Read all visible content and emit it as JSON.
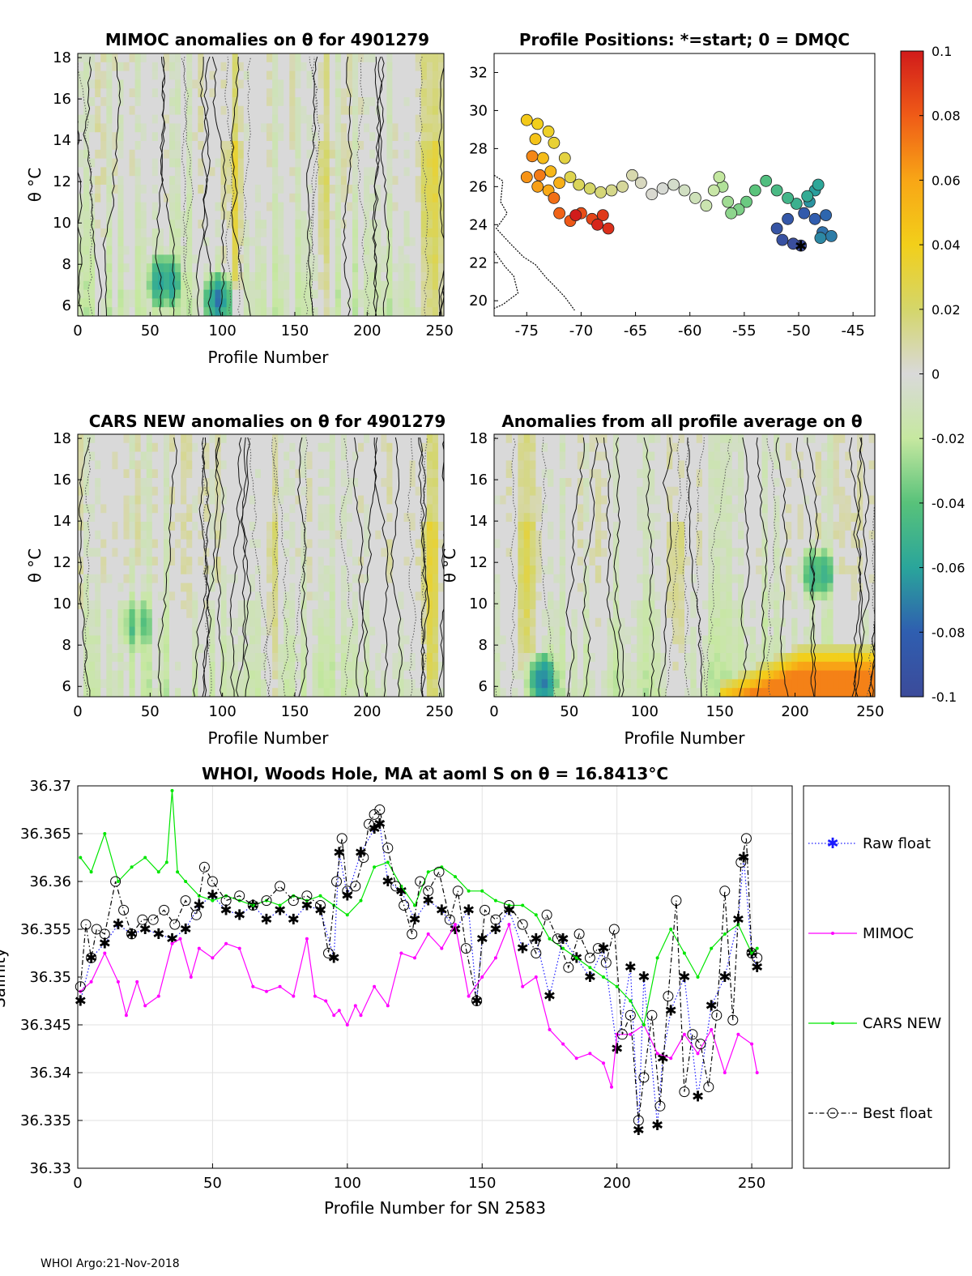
{
  "chart_data": [
    {
      "id": "mimoc",
      "type": "heatmap",
      "title": "MIMOC anomalies on θ  for 4901279",
      "xlabel": "Profile Number",
      "ylabel": "θ °C",
      "xlim": [
        0,
        253
      ],
      "ylim": [
        5.5,
        18.2
      ],
      "xticks": [
        0,
        50,
        100,
        150,
        200,
        250
      ],
      "yticks": [
        6,
        8,
        10,
        12,
        14,
        16,
        18
      ],
      "warm_bands": [
        {
          "x": 245,
          "value": 0.03
        },
        {
          "x": 108,
          "value": 0.03
        },
        {
          "x": 168,
          "value": 0.02
        }
      ],
      "cold_patches": [
        {
          "x": 60,
          "y": 7.2,
          "value": -0.05
        },
        {
          "x": 98,
          "y": 6.3,
          "value": -0.06
        }
      ]
    },
    {
      "id": "positions",
      "type": "scatter",
      "title": "Profile Positions: *=start; 0 = DMQC",
      "xlabel": "",
      "ylabel": "",
      "xlim": [
        -78,
        -43
      ],
      "ylim": [
        19.2,
        33
      ],
      "xticks": [
        -75,
        -70,
        -65,
        -60,
        -55,
        -50,
        -45
      ],
      "yticks": [
        20,
        22,
        24,
        26,
        28,
        30,
        32
      ],
      "start_marker": {
        "lon": -49.8,
        "lat": 22.9
      },
      "track": [
        [
          -49.8,
          22.9
        ],
        [
          -50.5,
          23.0
        ],
        [
          -51.5,
          23.2
        ],
        [
          -52.0,
          23.8
        ],
        [
          -51.0,
          24.3
        ],
        [
          -49.5,
          24.6
        ],
        [
          -48.5,
          24.3
        ],
        [
          -47.5,
          24.5
        ],
        [
          -47.8,
          23.6
        ],
        [
          -47.0,
          23.4
        ],
        [
          -48.0,
          23.3
        ],
        [
          -49.0,
          25.2
        ],
        [
          -48.5,
          25.8
        ],
        [
          -48.2,
          26.1
        ],
        [
          -49.2,
          25.5
        ],
        [
          -50.2,
          25.1
        ],
        [
          -51.0,
          25.4
        ],
        [
          -52.0,
          25.8
        ],
        [
          -53.0,
          26.3
        ],
        [
          -54.0,
          25.8
        ],
        [
          -54.8,
          25.2
        ],
        [
          -55.5,
          24.8
        ],
        [
          -56.2,
          24.6
        ],
        [
          -56.5,
          25.2
        ],
        [
          -57.0,
          26.0
        ],
        [
          -57.3,
          26.5
        ],
        [
          -57.8,
          25.8
        ],
        [
          -58.5,
          25.0
        ],
        [
          -59.5,
          25.4
        ],
        [
          -60.5,
          25.8
        ],
        [
          -61.5,
          26.1
        ],
        [
          -62.5,
          25.9
        ],
        [
          -63.5,
          25.6
        ],
        [
          -64.5,
          26.2
        ],
        [
          -65.3,
          26.6
        ],
        [
          -66.2,
          26.0
        ],
        [
          -67.2,
          25.8
        ],
        [
          -68.2,
          25.7
        ],
        [
          -69.2,
          25.9
        ],
        [
          -70.2,
          26.1
        ],
        [
          -71.0,
          26.5
        ],
        [
          -71.5,
          27.5
        ],
        [
          -72.5,
          28.3
        ],
        [
          -73.0,
          28.9
        ],
        [
          -74.0,
          29.3
        ],
        [
          -75.0,
          29.5
        ],
        [
          -74.2,
          28.5
        ],
        [
          -73.5,
          27.5
        ],
        [
          -72.8,
          26.8
        ],
        [
          -72.0,
          26.2
        ],
        [
          -73.0,
          25.8
        ],
        [
          -74.0,
          26.0
        ],
        [
          -75.0,
          26.5
        ],
        [
          -74.5,
          27.6
        ],
        [
          -73.8,
          26.6
        ],
        [
          -72.5,
          25.4
        ],
        [
          -72.0,
          24.6
        ],
        [
          -71.0,
          24.2
        ],
        [
          -70.0,
          24.6
        ],
        [
          -69.0,
          24.3
        ],
        [
          -68.0,
          24.5
        ],
        [
          -67.5,
          23.8
        ],
        [
          -68.5,
          24.0
        ],
        [
          -70.5,
          24.5
        ]
      ]
    },
    {
      "id": "cars",
      "type": "heatmap",
      "title": "CARS NEW anomalies on θ for 4901279",
      "xlabel": "Profile Number",
      "ylabel": "θ °C",
      "xlim": [
        0,
        253
      ],
      "ylim": [
        5.5,
        18.2
      ],
      "xticks": [
        0,
        50,
        100,
        150,
        200,
        250
      ],
      "yticks": [
        6,
        8,
        10,
        12,
        14,
        16,
        18
      ],
      "warm_bands": [
        {
          "x": 243,
          "value": 0.035
        },
        {
          "x": 135,
          "value": 0.02
        }
      ],
      "cold_patches": [
        {
          "x": 40,
          "y": 9.0,
          "value": -0.03
        }
      ]
    },
    {
      "id": "allavg",
      "type": "heatmap",
      "title": "Anomalies from all profile average on θ",
      "xlabel": "Profile Number",
      "ylabel": "θ °C",
      "xlim": [
        0,
        253
      ],
      "ylim": [
        5.5,
        18.2
      ],
      "xticks": [
        0,
        50,
        100,
        150,
        200,
        250
      ],
      "yticks": [
        6,
        8,
        10,
        12,
        14,
        16,
        18
      ],
      "warm_bands": [
        {
          "x": 22,
          "value": 0.025
        },
        {
          "x": 122,
          "value": 0.025
        }
      ],
      "cold_patches": [
        {
          "x": 30,
          "y": 6.3,
          "value": -0.06
        },
        {
          "x": 215,
          "y": 11.5,
          "value": -0.05
        }
      ],
      "warm_layer": {
        "x_start": 150,
        "x_end": 253,
        "value": 0.06
      }
    },
    {
      "id": "salinity",
      "type": "line",
      "title": "WHOI, Woods Hole, MA at aoml S on θ = 16.8413°C",
      "xlabel": "Profile Number for SN 2583",
      "ylabel": "Salinity",
      "xlim": [
        0,
        265
      ],
      "ylim": [
        36.33,
        36.37
      ],
      "xticks": [
        0,
        50,
        100,
        150,
        200,
        250
      ],
      "yticks": [
        36.33,
        36.335,
        36.34,
        36.345,
        36.35,
        36.355,
        36.36,
        36.365,
        36.37
      ],
      "series": [
        {
          "name": "Raw float",
          "color": "#1a1aff",
          "style": "dotted",
          "marker": "asterisk",
          "x": [
            1,
            5,
            10,
            15,
            20,
            25,
            30,
            35,
            40,
            45,
            50,
            55,
            60,
            65,
            70,
            75,
            80,
            85,
            90,
            95,
            97,
            100,
            105,
            110,
            112,
            115,
            120,
            125,
            130,
            135,
            140,
            145,
            148,
            150,
            155,
            160,
            165,
            170,
            175,
            180,
            185,
            190,
            195,
            200,
            205,
            208,
            210,
            215,
            217,
            220,
            225,
            230,
            235,
            240,
            245,
            247,
            250,
            252
          ],
          "y": [
            36.3475,
            36.352,
            36.3535,
            36.3555,
            36.3545,
            36.355,
            36.3545,
            36.354,
            36.355,
            36.3575,
            36.3585,
            36.357,
            36.3565,
            36.3575,
            36.356,
            36.357,
            36.356,
            36.3575,
            36.357,
            36.352,
            36.363,
            36.3585,
            36.363,
            36.3655,
            36.366,
            36.36,
            36.359,
            36.356,
            36.358,
            36.357,
            36.355,
            36.357,
            36.3475,
            36.354,
            36.355,
            36.357,
            36.353,
            36.354,
            36.348,
            36.354,
            36.352,
            36.35,
            36.353,
            36.3425,
            36.351,
            36.334,
            36.35,
            36.3345,
            36.3415,
            36.3465,
            36.35,
            36.3375,
            36.347,
            36.35,
            36.356,
            36.3625,
            36.3525,
            36.351
          ]
        },
        {
          "name": "MIMOC",
          "color": "#ff00ff",
          "style": "solid",
          "marker": "dot",
          "x": [
            1,
            5,
            10,
            15,
            18,
            22,
            25,
            30,
            35,
            38,
            42,
            45,
            50,
            55,
            60,
            65,
            70,
            75,
            80,
            85,
            88,
            92,
            95,
            97,
            100,
            103,
            105,
            110,
            115,
            120,
            125,
            130,
            135,
            140,
            145,
            150,
            155,
            160,
            165,
            170,
            175,
            180,
            185,
            190,
            195,
            198,
            200,
            205,
            210,
            215,
            220,
            225,
            230,
            235,
            240,
            245,
            250,
            252
          ],
          "y": [
            36.3485,
            36.3495,
            36.3525,
            36.3495,
            36.346,
            36.3495,
            36.347,
            36.348,
            36.3535,
            36.354,
            36.35,
            36.353,
            36.352,
            36.3535,
            36.353,
            36.349,
            36.3485,
            36.349,
            36.348,
            36.354,
            36.348,
            36.3475,
            36.346,
            36.3465,
            36.345,
            36.347,
            36.346,
            36.349,
            36.347,
            36.3525,
            36.352,
            36.3545,
            36.353,
            36.3555,
            36.348,
            36.35,
            36.352,
            36.3555,
            36.349,
            36.35,
            36.3445,
            36.343,
            36.3415,
            36.342,
            36.341,
            36.3385,
            36.344,
            36.344,
            36.345,
            36.342,
            36.3415,
            36.344,
            36.342,
            36.3445,
            36.34,
            36.344,
            36.343,
            36.34
          ]
        },
        {
          "name": "CARS NEW",
          "color": "#00e600",
          "style": "solid",
          "marker": "dot",
          "x": [
            1,
            5,
            10,
            15,
            20,
            25,
            30,
            33,
            35,
            37,
            40,
            45,
            50,
            55,
            60,
            65,
            70,
            75,
            80,
            85,
            90,
            95,
            100,
            105,
            110,
            115,
            120,
            125,
            130,
            135,
            140,
            145,
            150,
            155,
            160,
            165,
            170,
            175,
            180,
            185,
            190,
            195,
            200,
            205,
            210,
            215,
            220,
            225,
            230,
            235,
            240,
            245,
            250,
            252
          ],
          "y": [
            36.3625,
            36.361,
            36.365,
            36.36,
            36.3615,
            36.3625,
            36.361,
            36.362,
            36.3695,
            36.361,
            36.36,
            36.3585,
            36.358,
            36.3585,
            36.358,
            36.3575,
            36.358,
            36.3575,
            36.3585,
            36.358,
            36.3585,
            36.3575,
            36.3565,
            36.358,
            36.3615,
            36.362,
            36.3595,
            36.3575,
            36.361,
            36.3615,
            36.3605,
            36.359,
            36.359,
            36.358,
            36.3575,
            36.3575,
            36.3565,
            36.354,
            36.353,
            36.352,
            36.351,
            36.35,
            36.349,
            36.3475,
            36.345,
            36.352,
            36.355,
            36.3525,
            36.35,
            36.353,
            36.3545,
            36.3555,
            36.3525,
            36.353
          ]
        },
        {
          "name": "Best float",
          "color": "#000000",
          "style": "dashdot",
          "marker": "circle",
          "x": [
            1,
            3,
            5,
            7,
            10,
            14,
            17,
            20,
            24,
            28,
            32,
            36,
            40,
            44,
            47,
            50,
            55,
            60,
            65,
            70,
            75,
            80,
            85,
            90,
            93,
            96,
            98,
            100,
            103,
            106,
            108,
            110,
            112,
            115,
            118,
            121,
            124,
            127,
            130,
            134,
            138,
            141,
            144,
            148,
            151,
            155,
            160,
            165,
            170,
            174,
            178,
            182,
            186,
            190,
            193,
            196,
            199,
            202,
            205,
            208,
            210,
            213,
            216,
            219,
            222,
            225,
            228,
            231,
            234,
            237,
            240,
            243,
            246,
            248,
            250,
            252
          ],
          "y": [
            36.349,
            36.3555,
            36.352,
            36.355,
            36.3545,
            36.36,
            36.357,
            36.3545,
            36.356,
            36.356,
            36.357,
            36.3555,
            36.358,
            36.3565,
            36.3615,
            36.36,
            36.358,
            36.3585,
            36.3575,
            36.358,
            36.3595,
            36.358,
            36.3585,
            36.3575,
            36.3525,
            36.36,
            36.3645,
            36.359,
            36.3595,
            36.3625,
            36.366,
            36.367,
            36.3675,
            36.3635,
            36.3595,
            36.3575,
            36.3545,
            36.36,
            36.359,
            36.361,
            36.356,
            36.359,
            36.353,
            36.3475,
            36.357,
            36.356,
            36.3575,
            36.3555,
            36.3525,
            36.3565,
            36.354,
            36.351,
            36.3545,
            36.352,
            36.353,
            36.3515,
            36.355,
            36.344,
            36.346,
            36.335,
            36.3395,
            36.346,
            36.3365,
            36.348,
            36.358,
            36.338,
            36.344,
            36.343,
            36.3385,
            36.346,
            36.359,
            36.3455,
            36.362,
            36.3645,
            36.3525,
            36.352
          ]
        }
      ]
    }
  ],
  "colorbar": {
    "labels": [
      "0.1",
      "0.08",
      "0.06",
      "0.04",
      "0.02",
      "0",
      "-0.02",
      "-0.04",
      "-0.06",
      "-0.08",
      "-0.1"
    ],
    "colors": [
      "#d11b1b",
      "#ef5b17",
      "#f8a616",
      "#f2cf1a",
      "#d4d66a",
      "#d9d9d9",
      "#c6e8a0",
      "#58c27a",
      "#2aa59b",
      "#2f5eb0",
      "#3c4b9a"
    ]
  },
  "legend": {
    "raw": "Raw float",
    "mimoc": "MIMOC",
    "cars": "CARS NEW",
    "best": "Best float"
  },
  "footer": "WHOI Argo:21-Nov-2018"
}
